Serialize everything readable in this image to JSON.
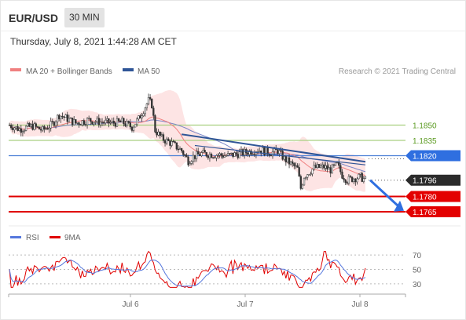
{
  "header": {
    "symbol": "EUR/USD",
    "timeframe": "30 MIN",
    "timestamp": "Thursday, July 8, 2021 1:44:28 AM CET"
  },
  "legend": {
    "ma20_label": "MA 20 + Bollinger Bands",
    "ma50_label": "MA 50",
    "credit": "Research © 2021 Trading Central",
    "rsi_label": "RSI",
    "ma9_label": "9MA"
  },
  "colors": {
    "ma20": "#f08080",
    "band": "#fcd9d9",
    "ma50": "#2f5597",
    "resistance": "#a9cf80",
    "pivot": "#4a7fd6",
    "support": "#e00000",
    "last": "#2b2b2b",
    "rsi": "#5577dd",
    "rsi_ma": "#e00000",
    "candle": "#333333"
  },
  "chart_data": [
    {
      "type": "line",
      "title": "EUR/USD 30 MIN",
      "x": [
        "Jul 6",
        "Jul 7",
        "Jul 8"
      ],
      "ylim": [
        1.1755,
        1.1895
      ],
      "price_levels": [
        {
          "label": "1.1850",
          "value": 1.185,
          "kind": "resistance"
        },
        {
          "label": "1.1835",
          "value": 1.1835,
          "kind": "resistance"
        },
        {
          "label": "1.1820",
          "value": 1.182,
          "kind": "pivot"
        },
        {
          "label": "1.1796",
          "value": 1.1796,
          "kind": "last"
        },
        {
          "label": "1.1780",
          "value": 1.178,
          "kind": "support"
        },
        {
          "label": "1.1765",
          "value": 1.1765,
          "kind": "support"
        }
      ],
      "series": [
        {
          "name": "MA 20 + Bollinger Bands"
        },
        {
          "name": "MA 50"
        }
      ]
    },
    {
      "type": "line",
      "title": "",
      "x": [
        "Jul 6",
        "Jul 7",
        "Jul 8"
      ],
      "ylim": [
        20,
        80
      ],
      "yticks": [
        "70",
        "50",
        "30"
      ],
      "series": [
        {
          "name": "RSI"
        },
        {
          "name": "9MA"
        }
      ]
    }
  ]
}
